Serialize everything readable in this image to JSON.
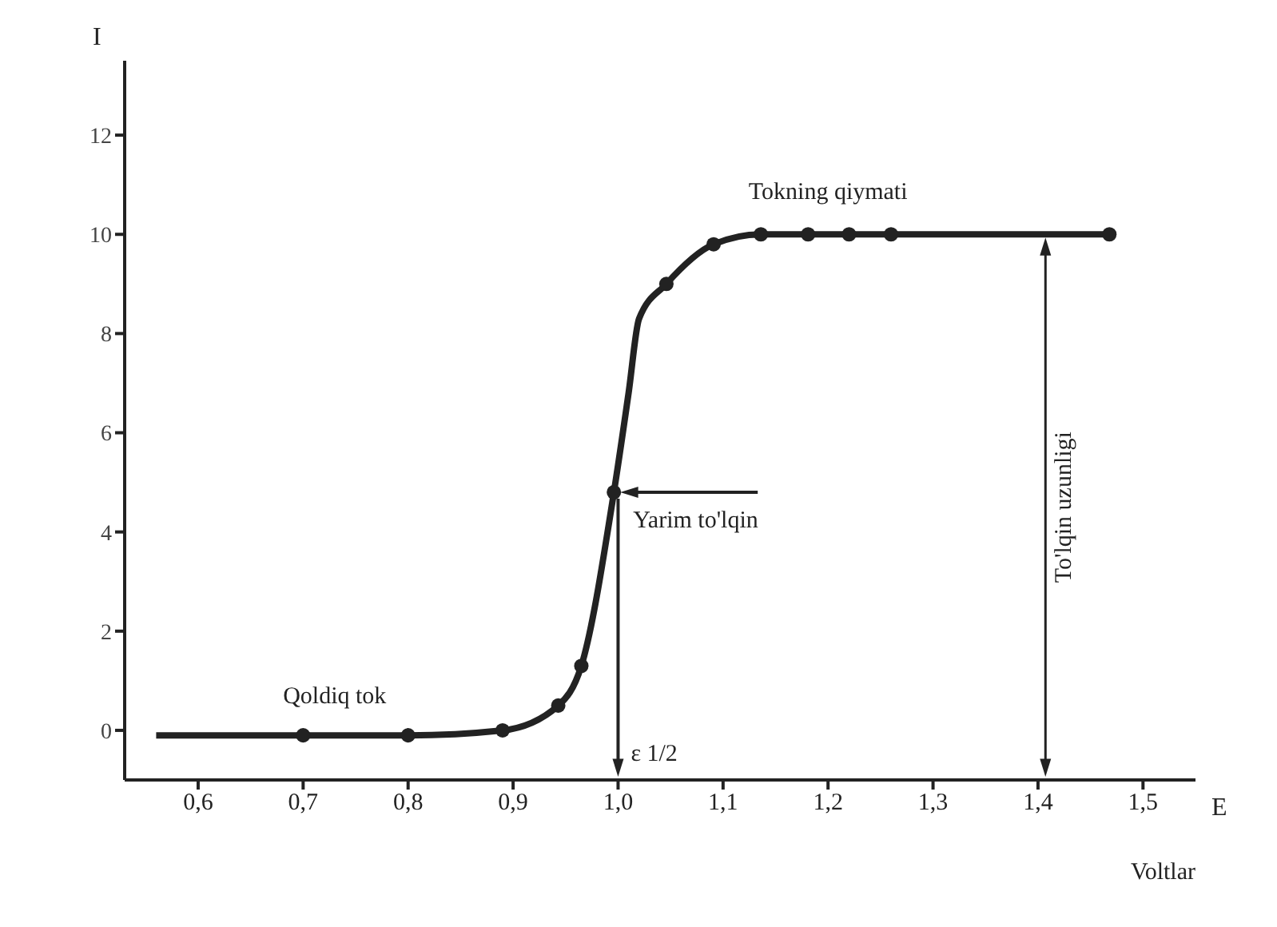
{
  "chart_data": {
    "type": "line",
    "xlabel": "E",
    "ylabel": "I",
    "xlim": [
      0.53,
      1.55
    ],
    "ylim": [
      -1,
      13.5
    ],
    "xticks": [
      {
        "value": 0.6,
        "label": "0,6"
      },
      {
        "value": 0.7,
        "label": "0,7"
      },
      {
        "value": 0.8,
        "label": "0,8"
      },
      {
        "value": 0.9,
        "label": "0,9"
      },
      {
        "value": 1.0,
        "label": "1,0"
      },
      {
        "value": 1.1,
        "label": "1,1"
      },
      {
        "value": 1.2,
        "label": "1,2"
      },
      {
        "value": 1.3,
        "label": "1,3"
      },
      {
        "value": 1.4,
        "label": "1,4"
      },
      {
        "value": 1.5,
        "label": "1,5"
      }
    ],
    "yticks": [
      0,
      2,
      4,
      6,
      8,
      10,
      12
    ],
    "marker": "circle",
    "line_style": "solid",
    "series": [
      {
        "type": "line",
        "marker": "none",
        "color": "#222222",
        "x": [
          0.56,
          0.7,
          0.8,
          0.89,
          0.943,
          0.965,
          0.996,
          1.01,
          1.02,
          1.046,
          1.091,
          1.136,
          1.181,
          1.22,
          1.26,
          1.468
        ],
        "values": [
          -0.1,
          -0.1,
          -0.1,
          0,
          0.5,
          1.3,
          4.8,
          6.8,
          8.3,
          9.0,
          9.8,
          10,
          10,
          10,
          10,
          10
        ]
      },
      {
        "type": "scatter",
        "color": "#222222",
        "x": [
          0.7,
          0.8,
          0.89,
          0.943,
          0.965,
          0.996,
          1.046,
          1.091,
          1.136,
          1.181,
          1.22,
          1.26,
          1.468
        ],
        "values": [
          -0.1,
          -0.1,
          0,
          0.5,
          1.3,
          4.8,
          9.0,
          9.8,
          10,
          10,
          10,
          10,
          10
        ]
      }
    ],
    "annotations": [
      {
        "text": "Qoldiq tok",
        "x": 0.73,
        "y": -0.1
      },
      {
        "text": "Tokning qiymati",
        "x": 1.2,
        "y": 10
      },
      {
        "text": "Yarim to'lqin",
        "x": 0.996,
        "y": 4.8
      },
      {
        "text": "ε 1/2",
        "x": 1.0,
        "y": 4.8
      },
      "To'lqin uzunligi",
      "Voltlar"
    ]
  }
}
